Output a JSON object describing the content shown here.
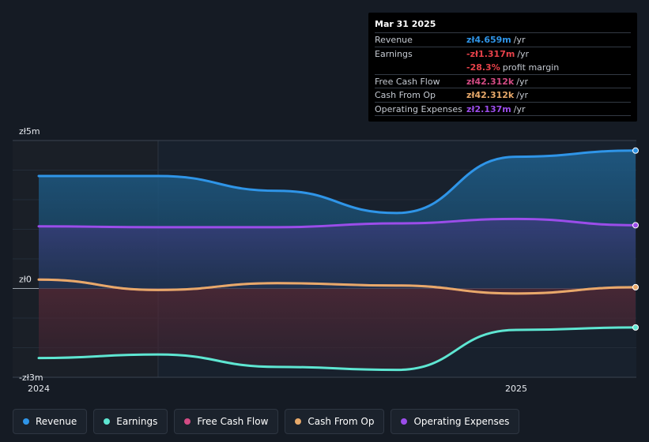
{
  "chart_data": {
    "type": "area",
    "currency_prefix": "zł",
    "y_ticks": [
      {
        "label": "zł5m",
        "value": 5.0
      },
      {
        "label": "zł0",
        "value": 0.0
      },
      {
        "label": "-zł3m",
        "value": -3.0
      }
    ],
    "ylim": [
      -3.0,
      5.0
    ],
    "x_ticks": [
      {
        "label": "2024",
        "value": 2024.0
      },
      {
        "label": "2025",
        "value": 2025.0
      }
    ],
    "xlim": [
      2024.0,
      2025.25
    ],
    "past_shade_until": 2024.25,
    "series": [
      {
        "name": "Revenue",
        "color": "#2f95e8",
        "x": [
          2024.0,
          2024.25,
          2024.5,
          2024.75,
          2025.0,
          2025.25
        ],
        "y": [
          3.8,
          3.8,
          3.3,
          2.55,
          4.45,
          4.659
        ]
      },
      {
        "name": "Operating Expenses",
        "color": "#9b4dea",
        "x": [
          2024.0,
          2024.25,
          2024.5,
          2024.75,
          2025.0,
          2025.25
        ],
        "y": [
          2.1,
          2.07,
          2.07,
          2.2,
          2.35,
          2.137
        ]
      },
      {
        "name": "Cash From Op",
        "color": "#e8a96a",
        "x": [
          2024.0,
          2024.25,
          2024.5,
          2024.75,
          2025.0,
          2025.25
        ],
        "y": [
          0.3,
          -0.05,
          0.18,
          0.1,
          -0.17,
          0.042
        ]
      },
      {
        "name": "Free Cash Flow",
        "color": "#d34b84",
        "x": [
          2024.0,
          2024.25,
          2024.5,
          2024.75,
          2025.0,
          2025.25
        ],
        "y": [
          0.3,
          -0.05,
          0.18,
          0.1,
          -0.17,
          0.042
        ]
      },
      {
        "name": "Earnings",
        "color": "#5ee6d2",
        "x": [
          2024.0,
          2024.25,
          2024.5,
          2024.75,
          2025.0,
          2025.25
        ],
        "y": [
          -2.35,
          -2.23,
          -2.65,
          -2.75,
          -1.4,
          -1.317
        ]
      }
    ]
  },
  "tooltip": {
    "date": "Mar 31 2025",
    "rows": [
      {
        "name": "Revenue",
        "value": "zł4.659m",
        "unit": "/yr",
        "color": "#2f95e8"
      },
      {
        "name": "Earnings",
        "value": "-zł1.317m",
        "unit": "/yr",
        "color": "#e8424a"
      },
      {
        "name": "",
        "value": "-28.3%",
        "unit": "profit margin",
        "color": "#e8424a"
      },
      {
        "name": "Free Cash Flow",
        "value": "zł42.312k",
        "unit": "/yr",
        "color": "#d34b84"
      },
      {
        "name": "Cash From Op",
        "value": "zł42.312k",
        "unit": "/yr",
        "color": "#e8a96a"
      },
      {
        "name": "Operating Expenses",
        "value": "zł2.137m",
        "unit": "/yr",
        "color": "#9b4dea"
      }
    ]
  },
  "legend": [
    {
      "label": "Revenue",
      "color": "#2f95e8"
    },
    {
      "label": "Earnings",
      "color": "#5ee6d2"
    },
    {
      "label": "Free Cash Flow",
      "color": "#d34b84"
    },
    {
      "label": "Cash From Op",
      "color": "#e8a96a"
    },
    {
      "label": "Operating Expenses",
      "color": "#9b4dea"
    }
  ]
}
